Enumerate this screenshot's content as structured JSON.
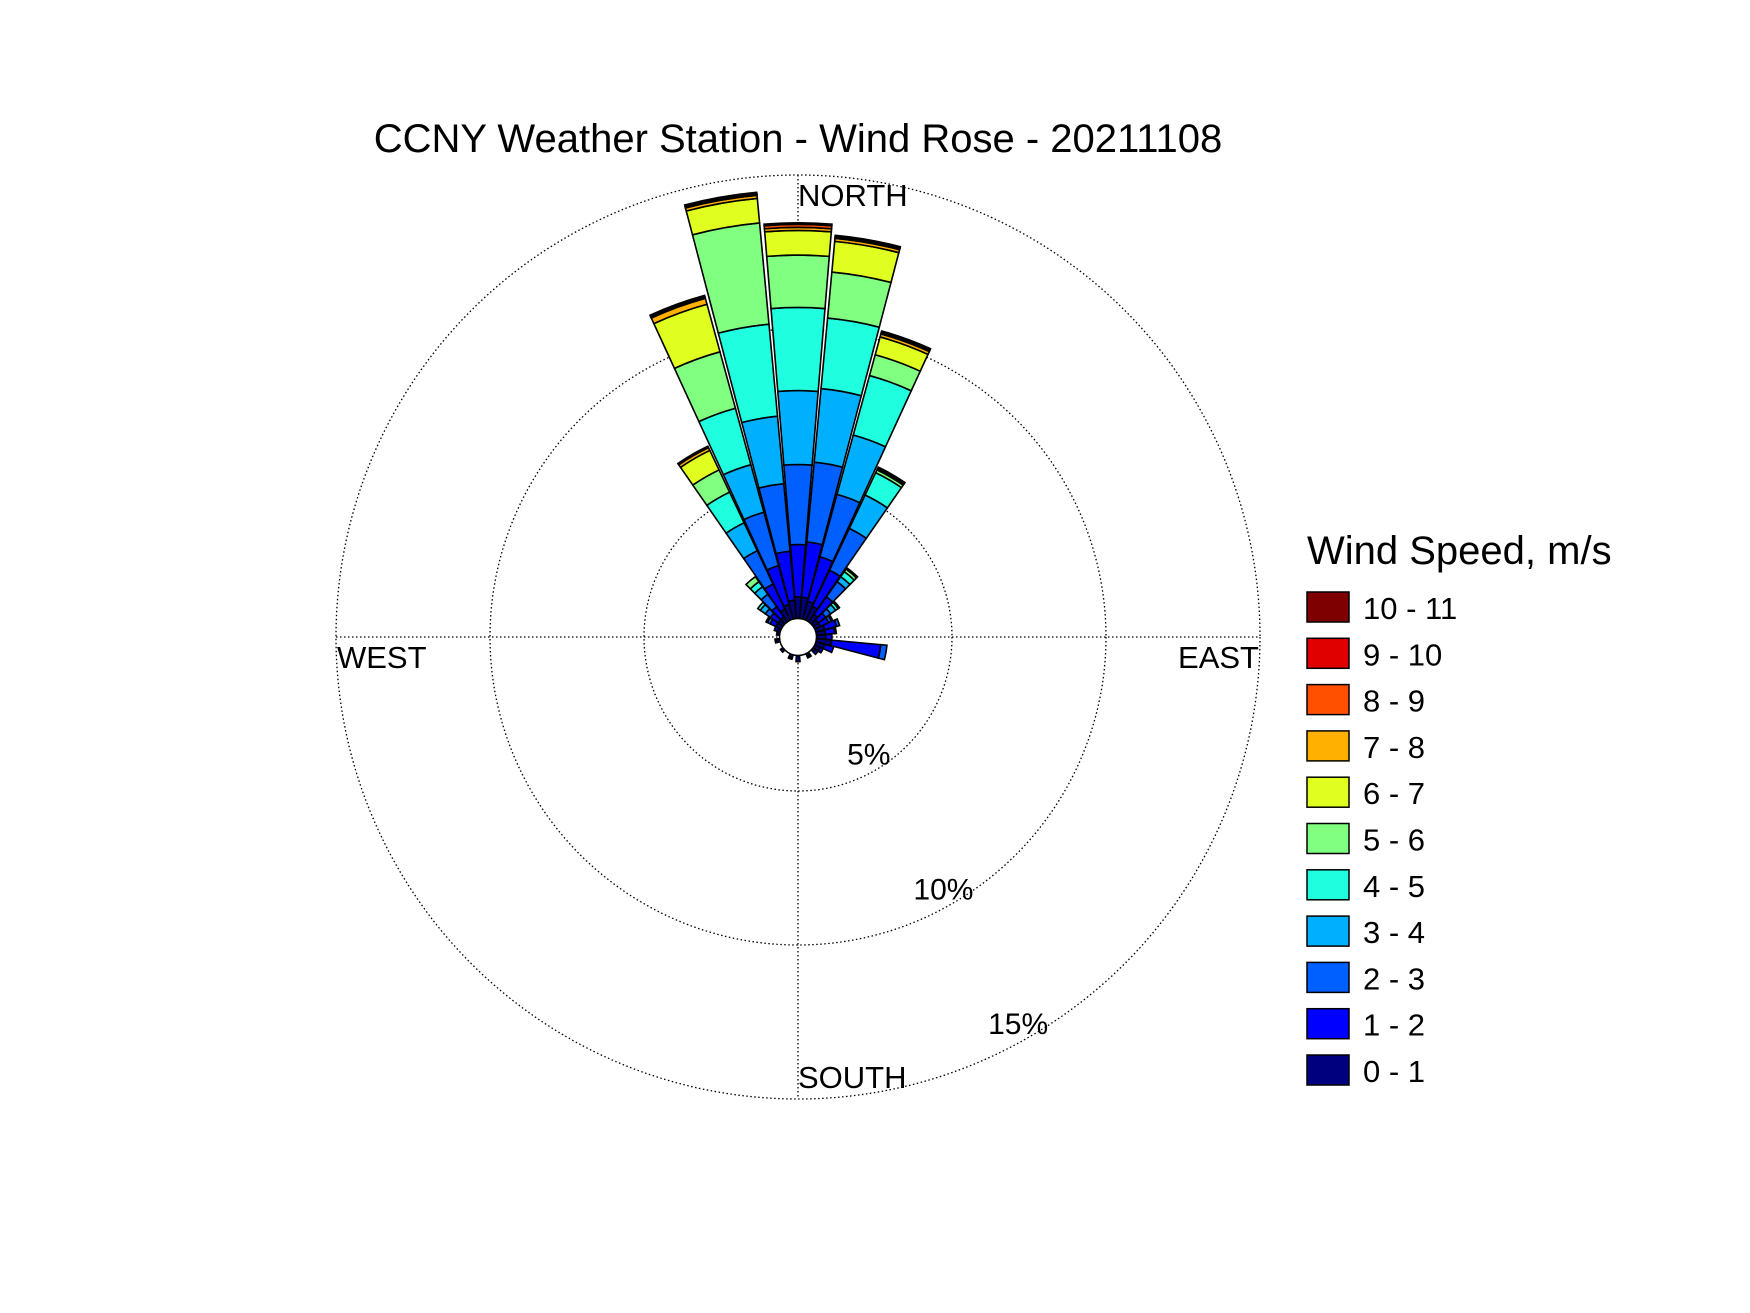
{
  "chart_data": {
    "type": "wind-rose",
    "title": "CCNY Weather Station - Wind Rose - 20211108",
    "direction_labels": {
      "north": "NORTH",
      "east": "EAST",
      "south": "SOUTH",
      "west": "WEST"
    },
    "radial_ticks": [
      {
        "value": 5,
        "label": "5%"
      },
      {
        "value": 10,
        "label": "10%"
      },
      {
        "value": 15,
        "label": "15%"
      }
    ],
    "rmax": 15,
    "calm_radius": 0.6,
    "sector_width_deg": 10,
    "grid": true,
    "legend": {
      "title": "Wind Speed, m/s",
      "placement": "right"
    },
    "bins": [
      {
        "label": "0 - 1",
        "color": "#00007f"
      },
      {
        "label": "1 - 2",
        "color": "#0000ff"
      },
      {
        "label": "2 - 3",
        "color": "#0060ff"
      },
      {
        "label": "3 - 4",
        "color": "#00b0ff"
      },
      {
        "label": "4 - 5",
        "color": "#1fffe0"
      },
      {
        "label": "5 - 6",
        "color": "#80ff80"
      },
      {
        "label": "6 - 7",
        "color": "#e0ff20"
      },
      {
        "label": "7 - 8",
        "color": "#ffb000"
      },
      {
        "label": "8 - 9",
        "color": "#ff5000"
      },
      {
        "label": "9 - 10",
        "color": "#e00000"
      },
      {
        "label": "10 - 11",
        "color": "#7f0000"
      }
    ],
    "sectors": [
      {
        "direction_deg": -40,
        "values": [
          0.2,
          0.4,
          0.5,
          0.3,
          0.2,
          0.2
        ]
      },
      {
        "direction_deg": -30,
        "values": [
          0.4,
          0.9,
          1.2,
          1.0,
          1.1,
          0.8,
          0.7,
          0.1,
          0.05
        ]
      },
      {
        "direction_deg": -20,
        "values": [
          0.5,
          1.3,
          1.8,
          1.6,
          1.9,
          1.9,
          1.6,
          0.2,
          0.05,
          0.05
        ]
      },
      {
        "direction_deg": -10,
        "values": [
          0.6,
          1.6,
          2.2,
          2.2,
          3.0,
          3.3,
          0.8,
          0.1,
          0.05,
          0.05
        ]
      },
      {
        "direction_deg": 0,
        "values": [
          0.7,
          1.7,
          2.6,
          2.4,
          2.7,
          1.7,
          0.8,
          0.1,
          0.1,
          0.05
        ]
      },
      {
        "direction_deg": 10,
        "values": [
          0.7,
          1.8,
          2.6,
          2.4,
          2.3,
          1.5,
          1.0,
          0.1,
          0.05,
          0.05
        ]
      },
      {
        "direction_deg": 20,
        "values": [
          0.6,
          1.5,
          2.1,
          2.0,
          2.0,
          0.7,
          0.6,
          0.1,
          0.05,
          0.05
        ]
      },
      {
        "direction_deg": 30,
        "values": [
          0.5,
          1.3,
          1.5,
          1.2,
          0.8,
          0.1,
          0.05,
          0.05
        ]
      },
      {
        "direction_deg": 40,
        "values": [
          0.3,
          0.7,
          0.6,
          0.2,
          0.2,
          0.1,
          0.05
        ]
      },
      {
        "direction_deg": 50,
        "values": [
          0.2,
          0.3,
          0.2,
          0.2,
          0.1,
          0.05
        ]
      },
      {
        "direction_deg": 60,
        "values": [
          0.2,
          0.3,
          0.1,
          0.05
        ]
      },
      {
        "direction_deg": 70,
        "values": [
          0.3,
          0.4,
          0.1
        ]
      },
      {
        "direction_deg": 80,
        "values": [
          0.3,
          0.3,
          0.05
        ]
      },
      {
        "direction_deg": 90,
        "values": [
          0.3,
          0.2
        ]
      },
      {
        "direction_deg": 100,
        "values": [
          0.5,
          1.6,
          0.2
        ]
      },
      {
        "direction_deg": 110,
        "values": [
          0.3,
          0.3
        ]
      },
      {
        "direction_deg": 120,
        "values": [
          0.2,
          0.1
        ]
      },
      {
        "direction_deg": 130,
        "values": [
          0.1,
          0.1
        ]
      },
      {
        "direction_deg": 150,
        "values": [
          0.1,
          0.05
        ]
      },
      {
        "direction_deg": 180,
        "values": [
          0.2
        ]
      },
      {
        "direction_deg": 200,
        "values": [
          0.1,
          0.05
        ]
      },
      {
        "direction_deg": 230,
        "values": [
          0.1
        ]
      },
      {
        "direction_deg": 260,
        "values": [
          0.1,
          0.05
        ]
      },
      {
        "direction_deg": 280,
        "values": [
          0.1
        ]
      },
      {
        "direction_deg": 290,
        "values": [
          0.1,
          0.1
        ]
      },
      {
        "direction_deg": 300,
        "values": [
          0.2,
          0.2,
          0.1,
          0.05
        ]
      },
      {
        "direction_deg": 310,
        "values": [
          0.2,
          0.3,
          0.2,
          0.2,
          0.1
        ]
      }
    ]
  }
}
